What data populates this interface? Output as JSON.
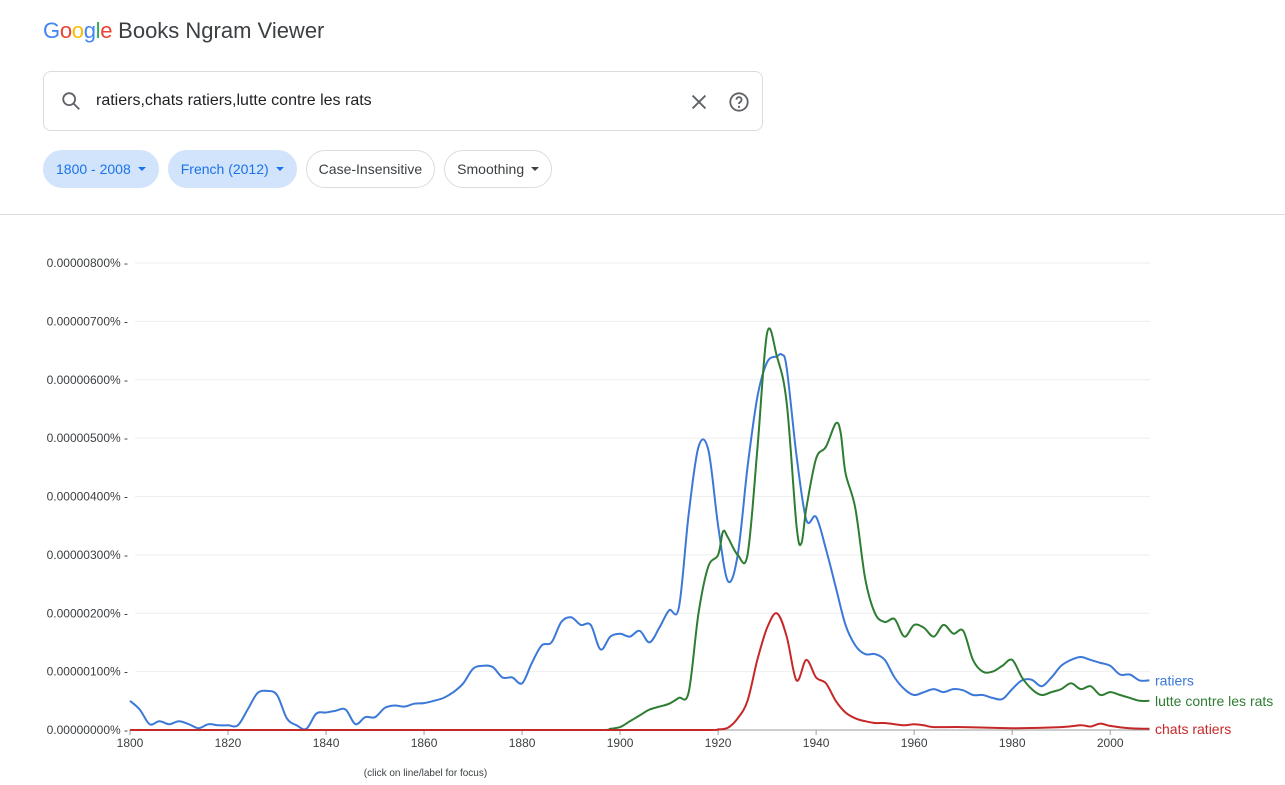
{
  "header": {
    "logo_letters": [
      "G",
      "o",
      "o",
      "g",
      "l",
      "e"
    ],
    "logo_colors": [
      "#4285f4",
      "#ea4335",
      "#fbbc05",
      "#4285f4",
      "#34a853",
      "#ea4335"
    ],
    "title": "Books Ngram Viewer"
  },
  "search": {
    "value": "ratiers,chats ratiers,lutte contre les rats",
    "placeholder": ""
  },
  "filters": {
    "years": "1800 - 2008",
    "corpus": "French (2012)",
    "case": "Case-Insensitive",
    "smoothing": "Smoothing"
  },
  "caption": "(click on line/label for focus)",
  "chart_data": {
    "type": "line",
    "y_unit": "%",
    "xlim": [
      1800,
      2008
    ],
    "ylim": [
      0,
      8e-06
    ],
    "x_ticks": [
      1800,
      1820,
      1840,
      1860,
      1880,
      1900,
      1920,
      1940,
      1960,
      1980,
      2000
    ],
    "y_ticks": [
      "0.00000000%",
      "0.00000100%",
      "0.00000200%",
      "0.00000300%",
      "0.00000400%",
      "0.00000500%",
      "0.00000600%",
      "0.00000700%",
      "0.00000800%"
    ],
    "grid": true,
    "series": [
      {
        "name": "ratiers",
        "color": "#3b78d8",
        "x": [
          1800,
          1802,
          1804,
          1806,
          1808,
          1810,
          1812,
          1814,
          1816,
          1818,
          1820,
          1822,
          1824,
          1826,
          1828,
          1830,
          1832,
          1834,
          1836,
          1838,
          1840,
          1842,
          1844,
          1846,
          1848,
          1850,
          1852,
          1854,
          1856,
          1858,
          1860,
          1862,
          1864,
          1866,
          1868,
          1870,
          1872,
          1874,
          1876,
          1878,
          1880,
          1882,
          1884,
          1886,
          1888,
          1890,
          1892,
          1894,
          1896,
          1898,
          1900,
          1902,
          1904,
          1906,
          1908,
          1910,
          1912,
          1914,
          1916,
          1918,
          1920,
          1922,
          1924,
          1926,
          1928,
          1930,
          1932,
          1933,
          1934,
          1936,
          1938,
          1940,
          1942,
          1944,
          1946,
          1948,
          1950,
          1952,
          1954,
          1956,
          1958,
          1960,
          1962,
          1964,
          1966,
          1968,
          1970,
          1972,
          1974,
          1976,
          1978,
          1980,
          1982,
          1984,
          1986,
          1988,
          1990,
          1992,
          1994,
          1996,
          1998,
          2000,
          2002,
          2004,
          2006,
          2008
        ],
        "y": [
          5e-07,
          3.5e-07,
          1e-07,
          1.5e-07,
          1e-07,
          1.5e-07,
          1e-07,
          3e-08,
          1e-07,
          8e-08,
          8e-08,
          8e-08,
          3.5e-07,
          6.3e-07,
          6.7e-07,
          6e-07,
          2e-07,
          8e-08,
          2e-08,
          2.8e-07,
          3e-07,
          3.3e-07,
          3.5e-07,
          1e-07,
          2.2e-07,
          2.2e-07,
          3.8e-07,
          4.2e-07,
          4e-07,
          4.5e-07,
          4.6e-07,
          5e-07,
          5.5e-07,
          6.5e-07,
          8e-07,
          1.05e-06,
          1.1e-06,
          1.08e-06,
          9e-07,
          9e-07,
          8e-07,
          1.15e-06,
          1.45e-06,
          1.5e-06,
          1.85e-06,
          1.93e-06,
          1.8e-06,
          1.8e-06,
          1.38e-06,
          1.6e-06,
          1.65e-06,
          1.6e-06,
          1.7e-06,
          1.5e-06,
          1.75e-06,
          2.05e-06,
          2.1e-06,
          3.7e-06,
          4.85e-06,
          4.8e-06,
          3.5e-06,
          2.55e-06,
          3e-06,
          4.5e-06,
          5.7e-06,
          6.3e-06,
          6.4e-06,
          6.43e-06,
          6.2e-06,
          4.7e-06,
          3.6e-06,
          3.65e-06,
          3.1e-06,
          2.45e-06,
          1.8e-06,
          1.45e-06,
          1.3e-06,
          1.3e-06,
          1.2e-06,
          9e-07,
          7e-07,
          6e-07,
          6.5e-07,
          7e-07,
          6.5e-07,
          7e-07,
          6.8e-07,
          6e-07,
          6e-07,
          5.5e-07,
          5.3e-07,
          7e-07,
          8.5e-07,
          8.6e-07,
          7.5e-07,
          9e-07,
          1.1e-06,
          1.2e-06,
          1.25e-06,
          1.2e-06,
          1.15e-06,
          1.1e-06,
          9.5e-07,
          9.5e-07,
          8.5e-07,
          8.5e-07
        ]
      },
      {
        "name": "lutte contre les rats",
        "color": "#2e7d32",
        "x": [
          1800,
          1850,
          1880,
          1896,
          1898,
          1900,
          1902,
          1904,
          1906,
          1908,
          1910,
          1912,
          1914,
          1916,
          1918,
          1920,
          1921,
          1922,
          1924,
          1926,
          1928,
          1930,
          1932,
          1934,
          1936,
          1937,
          1938,
          1940,
          1942,
          1944,
          1945,
          1946,
          1948,
          1950,
          1952,
          1954,
          1956,
          1958,
          1960,
          1962,
          1964,
          1966,
          1968,
          1970,
          1972,
          1974,
          1976,
          1978,
          1980,
          1982,
          1984,
          1986,
          1988,
          1990,
          1992,
          1994,
          1996,
          1998,
          2000,
          2002,
          2004,
          2006,
          2008
        ],
        "y": [
          0,
          0,
          0,
          0,
          2e-08,
          5e-08,
          1.5e-07,
          2.5e-07,
          3.5e-07,
          4e-07,
          4.5e-07,
          5.5e-07,
          6.5e-07,
          2e-06,
          2.8e-06,
          3e-06,
          3.4e-06,
          3.3e-06,
          3e-06,
          3e-06,
          4.8e-06,
          6.8e-06,
          6.4e-06,
          5.6e-06,
          3.5e-06,
          3.2e-06,
          3.8e-06,
          4.65e-06,
          4.85e-06,
          5.25e-06,
          5.1e-06,
          4.4e-06,
          3.8e-06,
          2.6e-06,
          2e-06,
          1.85e-06,
          1.9e-06,
          1.6e-06,
          1.8e-06,
          1.75e-06,
          1.6e-06,
          1.8e-06,
          1.65e-06,
          1.7e-06,
          1.2e-06,
          1e-06,
          1e-06,
          1.1e-06,
          1.2e-06,
          9e-07,
          7e-07,
          6e-07,
          6.5e-07,
          7e-07,
          8e-07,
          7e-07,
          7.5e-07,
          6e-07,
          6.5e-07,
          6e-07,
          5.5e-07,
          5e-07,
          5e-07
        ]
      },
      {
        "name": "chats ratiers",
        "color": "#c62828",
        "x": [
          1800,
          1900,
          1918,
          1920,
          1922,
          1924,
          1926,
          1928,
          1930,
          1932,
          1934,
          1936,
          1938,
          1940,
          1942,
          1944,
          1946,
          1948,
          1950,
          1952,
          1954,
          1956,
          1958,
          1960,
          1962,
          1964,
          1970,
          1980,
          1990,
          1994,
          1996,
          1998,
          2000,
          2004,
          2008
        ],
        "y": [
          0,
          0,
          0,
          1e-08,
          4e-08,
          2e-07,
          5e-07,
          1.2e-06,
          1.75e-06,
          2e-06,
          1.6e-06,
          8.5e-07,
          1.2e-06,
          9e-07,
          8e-07,
          5e-07,
          3e-07,
          2e-07,
          1.5e-07,
          1.2e-07,
          1.2e-07,
          1e-07,
          8e-08,
          1e-07,
          8e-08,
          5e-08,
          5e-08,
          3e-08,
          5e-08,
          8e-08,
          6e-08,
          1.1e-07,
          7e-08,
          3e-08,
          2e-08
        ]
      }
    ]
  }
}
